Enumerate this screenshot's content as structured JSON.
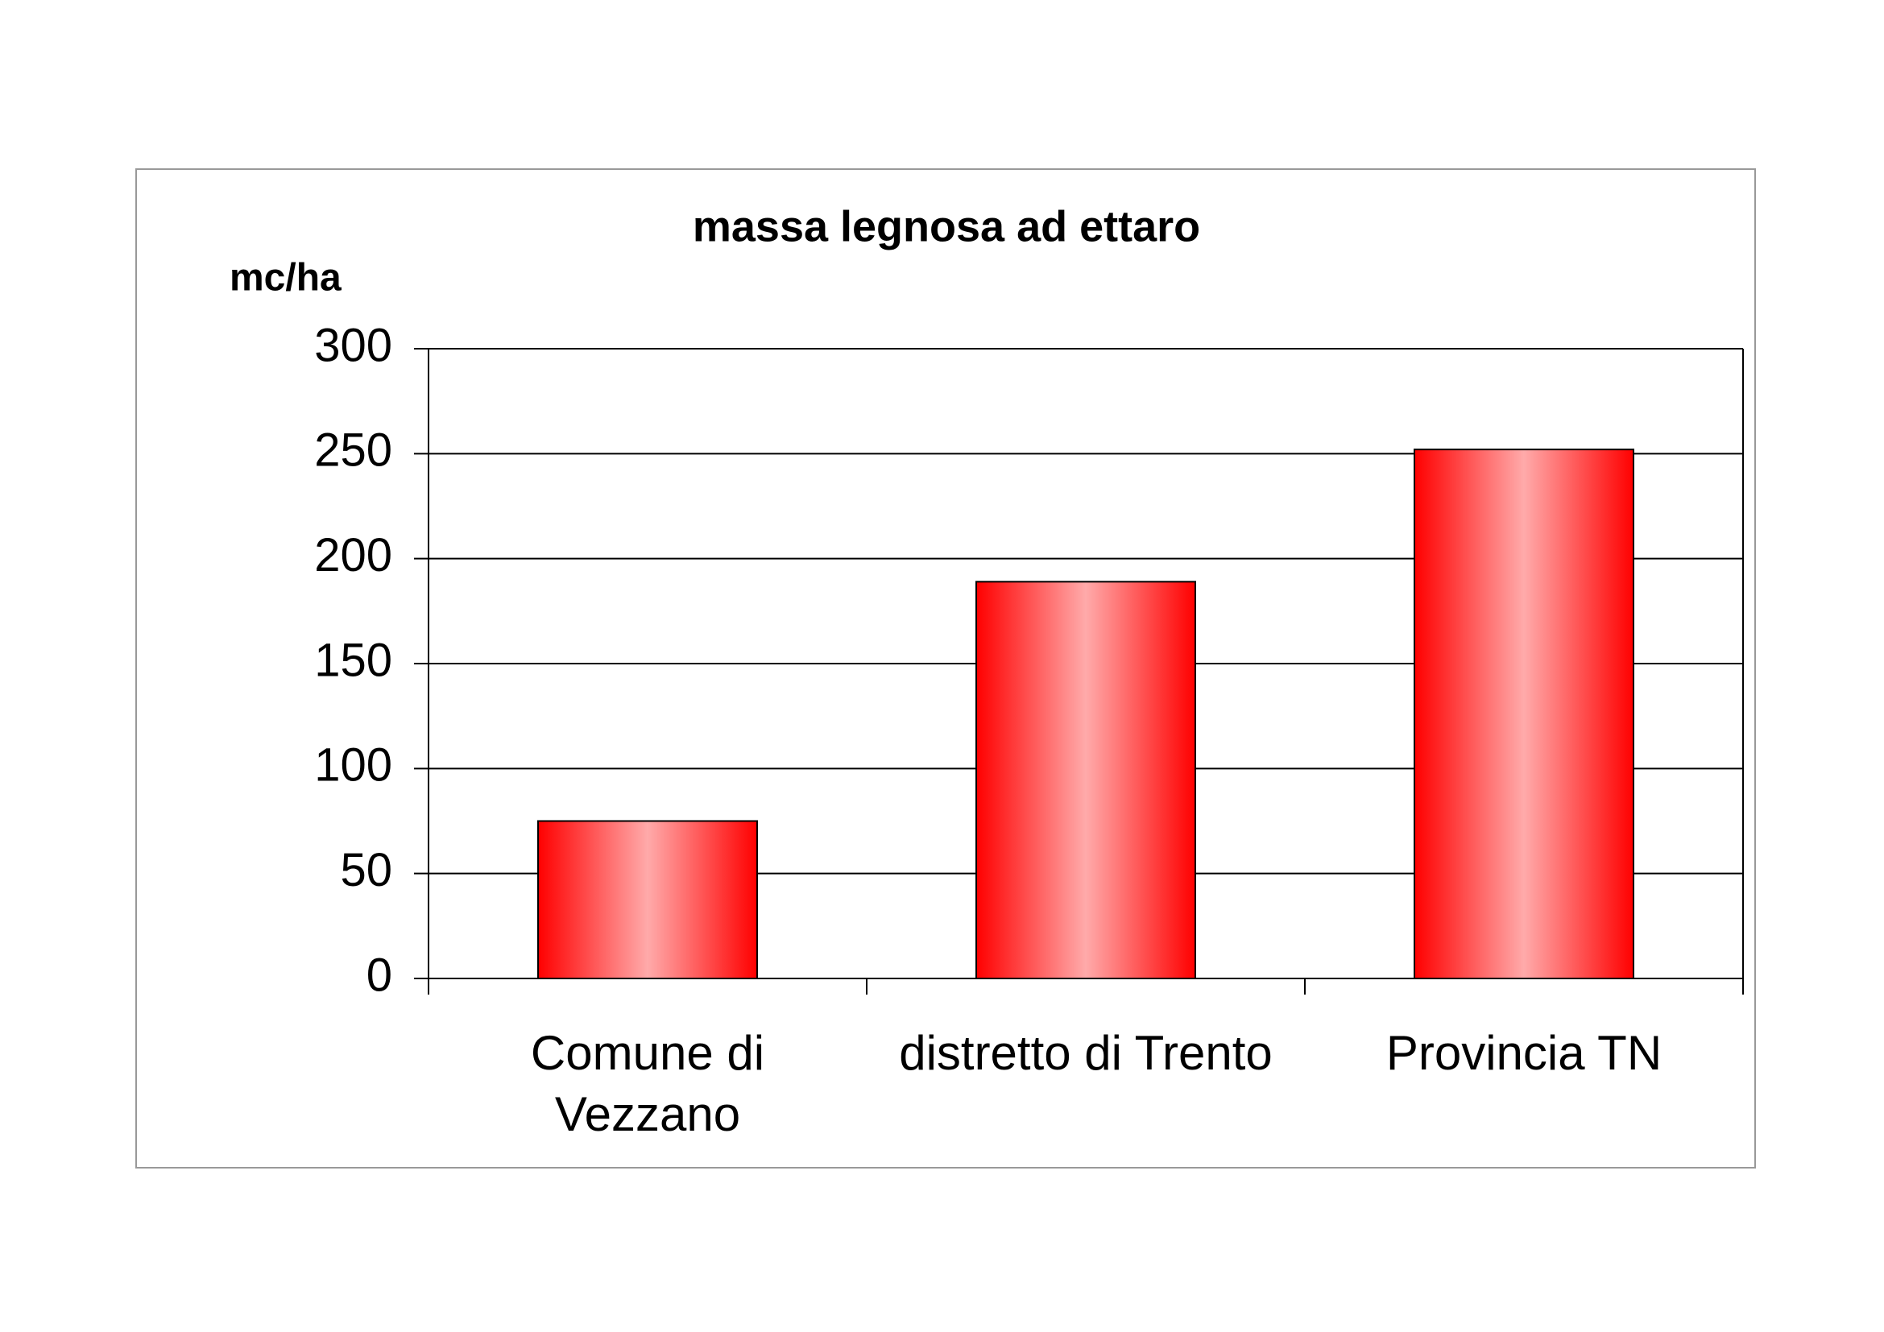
{
  "chart_data": {
    "type": "bar",
    "title": "massa legnosa ad ettaro",
    "y_label": "mc/ha",
    "categories": [
      "Comune di\nVezzano",
      "distretto di Trento",
      "Provincia TN"
    ],
    "values": [
      75,
      189,
      252
    ],
    "color": "#ff0000",
    "ylim": [
      0,
      300
    ],
    "yticks": [
      0,
      50,
      100,
      150,
      200,
      250,
      300
    ],
    "grid": true
  }
}
